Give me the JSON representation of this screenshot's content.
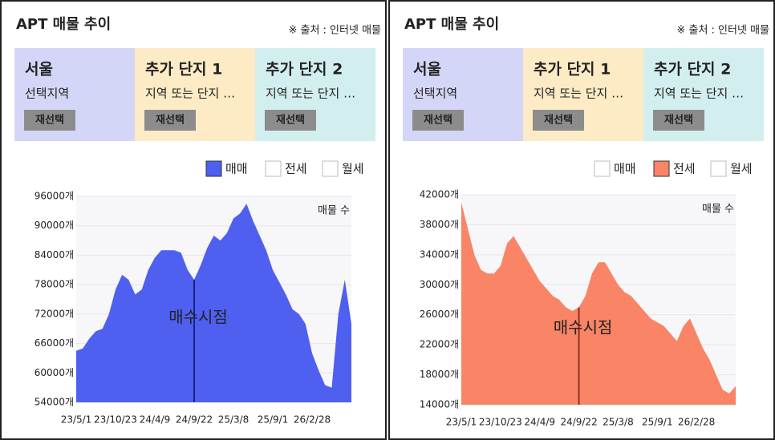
{
  "chart_data": [
    {
      "type": "area",
      "title": "APT 매물 추이",
      "source": "※ 출처 : 인터넷 매물",
      "cards": [
        {
          "title": "서울",
          "subtitle": "선택지역",
          "button": "재선택"
        },
        {
          "title": "추가 단지 1",
          "subtitle": "지역 또는 단지 …",
          "button": "재선택"
        },
        {
          "title": "추가 단지 2",
          "subtitle": "지역 또는 단지 …",
          "button": "재선택"
        }
      ],
      "legend": [
        "매매",
        "전세",
        "월세"
      ],
      "selected": 0,
      "ylabel": "매물 수",
      "annotation": {
        "text": "매수시점",
        "x": "24/9/22"
      },
      "color": "#4f5ff0",
      "annotation_color": "#1a237e",
      "categories": [
        "23/5/1",
        null,
        null,
        null,
        null,
        null,
        "23/10/23",
        null,
        null,
        null,
        null,
        null,
        "24/4/9",
        null,
        null,
        null,
        null,
        null,
        "24/9/22",
        null,
        null,
        null,
        null,
        null,
        "25/3/8",
        null,
        null,
        null,
        null,
        null,
        "25/9/1",
        null,
        null,
        null,
        null,
        null,
        "26/2/28",
        null,
        null,
        null,
        null,
        null,
        null
      ],
      "values": [
        64500,
        65000,
        67000,
        68500,
        69000,
        72000,
        77000,
        80000,
        79000,
        76000,
        77000,
        81000,
        83500,
        85000,
        85000,
        85000,
        84500,
        81000,
        79000,
        82000,
        85500,
        88000,
        87000,
        88500,
        91500,
        92500,
        94500,
        91000,
        88000,
        85000,
        81000,
        78500,
        76000,
        73000,
        72000,
        70000,
        64000,
        60500,
        57500,
        57000,
        72000,
        79000,
        70000
      ],
      "ylim": [
        54000,
        96000
      ],
      "yticks": [
        {
          "value": 54000,
          "label": "54000개"
        },
        {
          "value": 60000,
          "label": "60000개"
        },
        {
          "value": 66000,
          "label": "66000개"
        },
        {
          "value": 72000,
          "label": "72000개"
        },
        {
          "value": 78000,
          "label": "78000개"
        },
        {
          "value": 84000,
          "label": "84000개"
        },
        {
          "value": 90000,
          "label": "90000개"
        },
        {
          "value": 96000,
          "label": "96000개"
        }
      ]
    },
    {
      "type": "area",
      "title": "APT 매물 추이",
      "source": "※ 출처 : 인터넷 매물",
      "cards": [
        {
          "title": "서울",
          "subtitle": "선택지역",
          "button": "재선택"
        },
        {
          "title": "추가 단지 1",
          "subtitle": "지역 또는 단지 …",
          "button": "재선택"
        },
        {
          "title": "추가 단지 2",
          "subtitle": "지역 또는 단지 …",
          "button": "재선택"
        }
      ],
      "legend": [
        "매매",
        "전세",
        "월세"
      ],
      "selected": 1,
      "ylabel": "매물 수",
      "annotation": {
        "text": "매수시점",
        "x": "24/9/22"
      },
      "color": "#f98466",
      "annotation_color": "#8a3424",
      "categories": [
        "23/5/1",
        null,
        null,
        null,
        null,
        null,
        "23/10/23",
        null,
        null,
        null,
        null,
        null,
        "24/4/9",
        null,
        null,
        null,
        null,
        null,
        "24/9/22",
        null,
        null,
        null,
        null,
        null,
        "25/3/8",
        null,
        null,
        null,
        null,
        null,
        "25/9/1",
        null,
        null,
        null,
        null,
        null,
        "26/2/28",
        null,
        null,
        null,
        null,
        null,
        null
      ],
      "values": [
        41000,
        37500,
        34000,
        32000,
        31500,
        31500,
        32500,
        35500,
        36500,
        35000,
        33500,
        32000,
        30500,
        29500,
        28500,
        28000,
        27000,
        26500,
        27000,
        28500,
        31500,
        33000,
        33000,
        31500,
        30000,
        29000,
        28500,
        27500,
        26500,
        25500,
        25000,
        24500,
        23500,
        22500,
        24500,
        25500,
        23500,
        21500,
        20000,
        18000,
        16000,
        15500,
        16500
      ],
      "ylim": [
        14000,
        42000
      ],
      "yticks": [
        {
          "value": 14000,
          "label": "14000개"
        },
        {
          "value": 18000,
          "label": "18000개"
        },
        {
          "value": 22000,
          "label": "22000개"
        },
        {
          "value": 26000,
          "label": "26000개"
        },
        {
          "value": 30000,
          "label": "30000개"
        },
        {
          "value": 34000,
          "label": "34000개"
        },
        {
          "value": 38000,
          "label": "38000개"
        },
        {
          "value": 42000,
          "label": "42000개"
        }
      ]
    }
  ]
}
